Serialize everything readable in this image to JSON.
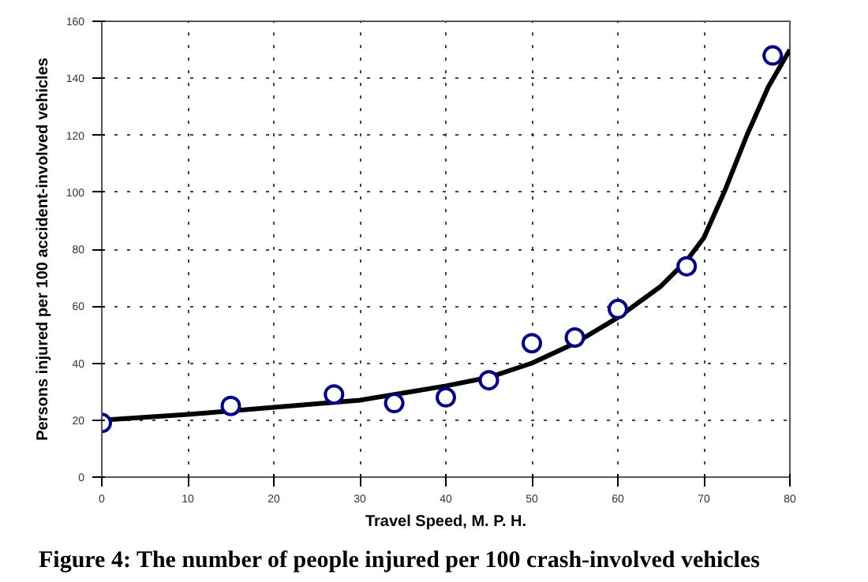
{
  "chart_data": {
    "type": "scatter",
    "title": "Figure 4: The number of people injured per 100 crash-involved vehicles",
    "xlabel": "Travel Speed, M. P. H.",
    "ylabel": "Persons injured per 100 accident-involved vehicles",
    "series": [
      {
        "color": "#000080",
        "marker": "circle",
        "x": [
          0,
          15,
          27,
          34,
          40,
          45,
          50,
          55,
          60,
          68,
          78
        ],
        "values": [
          19,
          25,
          29,
          26,
          28,
          34,
          47,
          49,
          59,
          74,
          148
        ]
      },
      {
        "type": "line",
        "color": "#000000",
        "line_style": "solid",
        "x": [
          0,
          10,
          20,
          30,
          40,
          45,
          50,
          55,
          60,
          65,
          68,
          70,
          72.5,
          75,
          77.5,
          80
        ],
        "values": [
          20,
          22,
          24.5,
          27,
          32,
          35,
          40,
          47,
          56,
          67,
          76,
          84,
          101,
          120,
          137,
          150
        ]
      }
    ],
    "xlim": [
      0,
      80
    ],
    "xticks": [
      0,
      10,
      20,
      30,
      40,
      50,
      60,
      70,
      80
    ],
    "ylim": [
      0,
      160
    ],
    "yticks": [
      0,
      20,
      40,
      60,
      80,
      100,
      120,
      140,
      160
    ],
    "grid": true
  }
}
